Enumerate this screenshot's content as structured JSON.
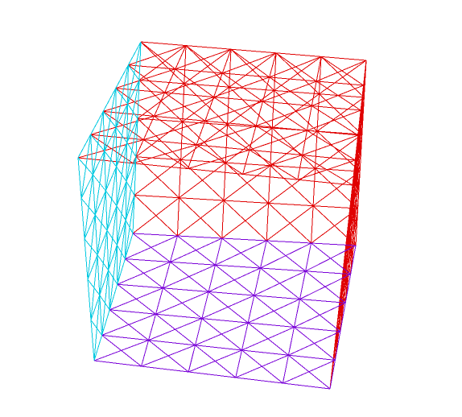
{
  "scene": {
    "background": "#ffffff",
    "object": "cube-wireframe-mesh",
    "grid_divisions": 5,
    "diagonals": "x-pattern-per-cell",
    "faces": {
      "left": {
        "color": "#00c8e0"
      },
      "back": {
        "color": "#e00000"
      },
      "top": {
        "color": "#e00000"
      },
      "right": {
        "color": "#e00000"
      },
      "bottom": {
        "color": "#7a00d8"
      }
    }
  }
}
